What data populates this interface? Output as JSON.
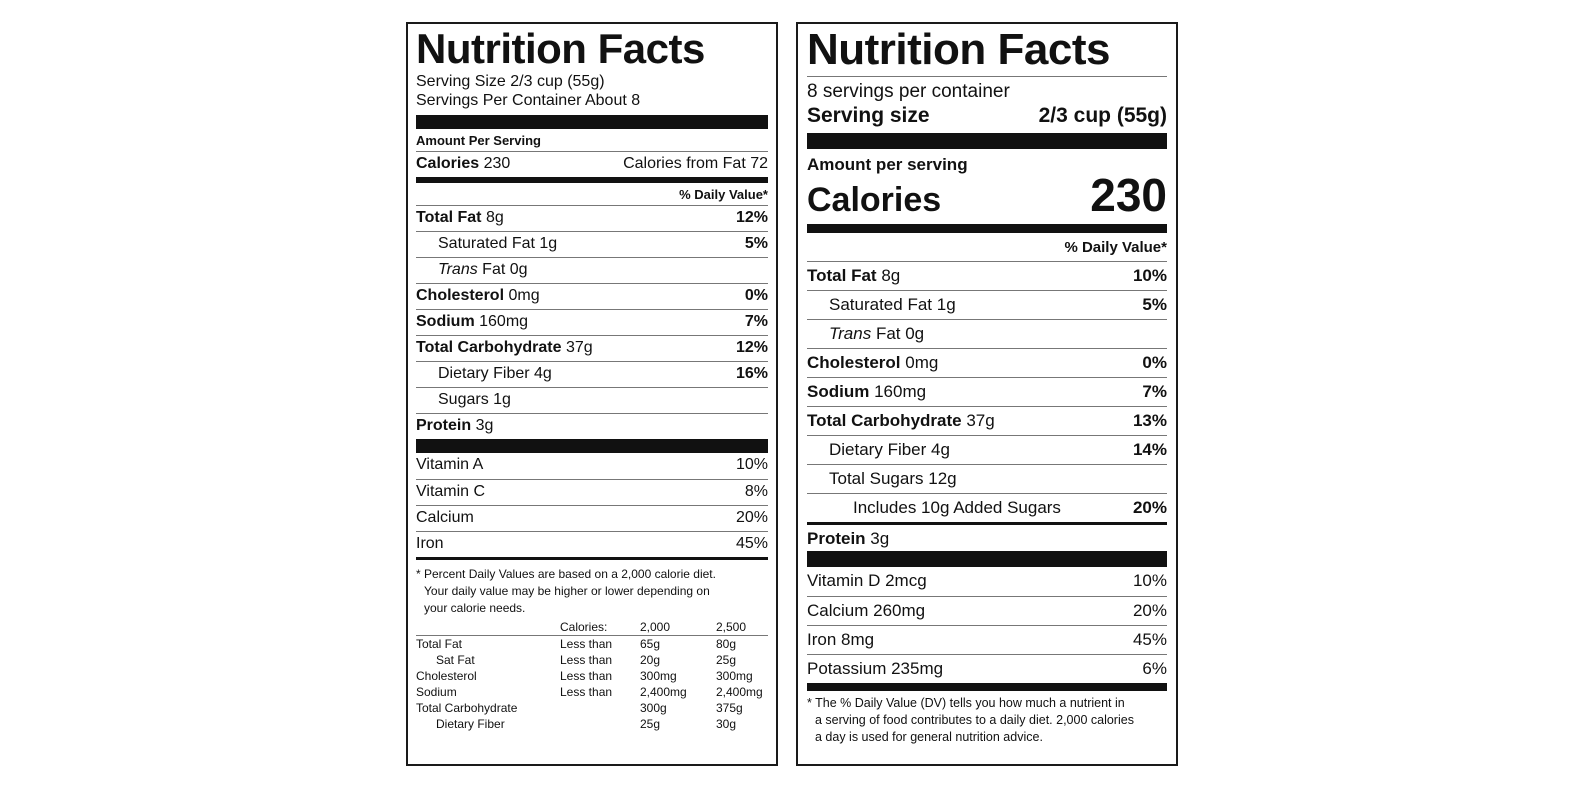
{
  "old_label": {
    "title": "Nutrition Facts",
    "serving_size": "Serving Size 2/3 cup (55g)",
    "servings_per_container": "Servings Per Container About 8",
    "amount_per_serving": "Amount Per Serving",
    "calories_label": "Calories",
    "calories_value": "230",
    "calories_from_fat": "Calories from Fat 72",
    "dv_header": "% Daily Value*",
    "nutrients": [
      {
        "name": "Total Fat",
        "amount": "8g",
        "dv": "12%"
      },
      {
        "name": "Saturated Fat",
        "amount": "1g",
        "dv": "5%"
      },
      {
        "name": "Trans",
        "amount": "Fat 0g",
        "dv": ""
      },
      {
        "name": "Cholesterol",
        "amount": "0mg",
        "dv": "0%"
      },
      {
        "name": "Sodium",
        "amount": "160mg",
        "dv": "7%"
      },
      {
        "name": "Total Carbohydrate",
        "amount": "37g",
        "dv": "12%"
      },
      {
        "name": "Dietary Fiber",
        "amount": "4g",
        "dv": "16%"
      },
      {
        "name": "Sugars",
        "amount": "1g",
        "dv": ""
      },
      {
        "name": "Protein",
        "amount": "3g",
        "dv": ""
      }
    ],
    "vitamins": [
      {
        "name": "Vitamin A",
        "dv": "10%"
      },
      {
        "name": "Vitamin C",
        "dv": "8%"
      },
      {
        "name": "Calcium",
        "dv": "20%"
      },
      {
        "name": "Iron",
        "dv": "45%"
      }
    ],
    "footnote": [
      "* Percent Daily Values are based on a 2,000 calorie diet.",
      "Your daily value may be higher or lower depending on",
      "your calorie needs."
    ],
    "reference_table": {
      "header": [
        "",
        "Calories:",
        "2,000",
        "2,500"
      ],
      "rows": [
        [
          "Total Fat",
          "Less than",
          "65g",
          "80g"
        ],
        [
          "Sat Fat",
          "Less than",
          "20g",
          "25g"
        ],
        [
          "Cholesterol",
          "Less than",
          "300mg",
          "300mg"
        ],
        [
          "Sodium",
          "Less than",
          "2,400mg",
          "2,400mg"
        ],
        [
          "Total Carbohydrate",
          "",
          "300g",
          "375g"
        ],
        [
          "Dietary Fiber",
          "",
          "25g",
          "30g"
        ]
      ]
    }
  },
  "new_label": {
    "title": "Nutrition Facts",
    "servings_per_container": "8 servings per container",
    "serving_size_label": "Serving size",
    "serving_size_value": "2/3 cup (55g)",
    "amount_per_serving": "Amount per serving",
    "calories_label": "Calories",
    "calories_value": "230",
    "dv_header": "% Daily Value*",
    "nutrients": [
      {
        "name": "Total Fat",
        "amount": "8g",
        "dv": "10%"
      },
      {
        "name": "Saturated Fat",
        "amount": "1g",
        "dv": "5%"
      },
      {
        "name": "Trans",
        "amount": "Fat 0g",
        "dv": ""
      },
      {
        "name": "Cholesterol",
        "amount": "0mg",
        "dv": "0%"
      },
      {
        "name": "Sodium",
        "amount": "160mg",
        "dv": "7%"
      },
      {
        "name": "Total Carbohydrate",
        "amount": "37g",
        "dv": "13%"
      },
      {
        "name": "Dietary Fiber",
        "amount": "4g",
        "dv": "14%"
      },
      {
        "name": "Total Sugars",
        "amount": "12g",
        "dv": ""
      },
      {
        "name": "Includes 10g Added Sugars",
        "amount": "",
        "dv": "20%"
      },
      {
        "name": "Protein",
        "amount": "3g",
        "dv": ""
      }
    ],
    "vitamins": [
      {
        "name": "Vitamin D 2mcg",
        "dv": "10%"
      },
      {
        "name": "Calcium 260mg",
        "dv": "20%"
      },
      {
        "name": "Iron 8mg",
        "dv": "45%"
      },
      {
        "name": "Potassium 235mg",
        "dv": "6%"
      }
    ],
    "footnote": [
      "* The % Daily Value (DV) tells you how much a nutrient in",
      "a serving of food contributes to a daily diet. 2,000 calories",
      "a day is used for general nutrition advice."
    ]
  }
}
